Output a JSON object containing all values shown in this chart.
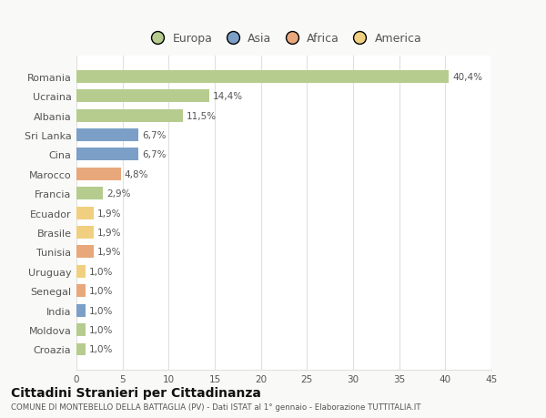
{
  "countries": [
    "Romania",
    "Ucraina",
    "Albania",
    "Sri Lanka",
    "Cina",
    "Marocco",
    "Francia",
    "Ecuador",
    "Brasile",
    "Tunisia",
    "Uruguay",
    "Senegal",
    "India",
    "Moldova",
    "Croazia"
  ],
  "values": [
    40.4,
    14.4,
    11.5,
    6.7,
    6.7,
    4.8,
    2.9,
    1.9,
    1.9,
    1.9,
    1.0,
    1.0,
    1.0,
    1.0,
    1.0
  ],
  "labels": [
    "40,4%",
    "14,4%",
    "11,5%",
    "6,7%",
    "6,7%",
    "4,8%",
    "2,9%",
    "1,9%",
    "1,9%",
    "1,9%",
    "1,0%",
    "1,0%",
    "1,0%",
    "1,0%",
    "1,0%"
  ],
  "continents": [
    "Europa",
    "Europa",
    "Europa",
    "Asia",
    "Asia",
    "Africa",
    "Europa",
    "America",
    "America",
    "Africa",
    "America",
    "Africa",
    "Asia",
    "Europa",
    "Europa"
  ],
  "colors": {
    "Europa": "#b5cc8e",
    "Asia": "#7b9fc7",
    "Africa": "#e8a87c",
    "America": "#f0d080"
  },
  "xlim": [
    0,
    45
  ],
  "xticks": [
    0,
    5,
    10,
    15,
    20,
    25,
    30,
    35,
    40,
    45
  ],
  "title": "Cittadini Stranieri per Cittadinanza",
  "subtitle": "COMUNE DI MONTEBELLO DELLA BATTAGLIA (PV) - Dati ISTAT al 1° gennaio - Elaborazione TUTTITALIA.IT",
  "background_color": "#f9f9f7",
  "bar_background": "#ffffff",
  "grid_color": "#e0e0e0",
  "text_color": "#555555",
  "title_color": "#111111",
  "legend_order": [
    "Europa",
    "Asia",
    "Africa",
    "America"
  ]
}
